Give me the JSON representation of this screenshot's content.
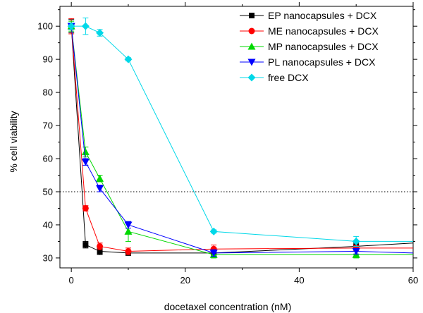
{
  "chart_data": {
    "type": "line",
    "xlabel": "docetaxel concentration (nM)",
    "ylabel": "% cell viability",
    "xlim": [
      -2,
      60
    ],
    "ylim": [
      27,
      106
    ],
    "xticks": [
      0,
      20,
      40,
      60
    ],
    "xtick_labels": [
      "0",
      "20",
      "40",
      "60"
    ],
    "yticks": [
      30,
      40,
      50,
      60,
      70,
      80,
      90,
      100
    ],
    "ytick_labels": [
      "30",
      "40",
      "50",
      "60",
      "70",
      "80",
      "90",
      "100"
    ],
    "x_minor_step": 10,
    "y_minor_step": 5,
    "grid": false,
    "legend_position": "top-right",
    "reference_line": {
      "y": 50,
      "style": "dotted",
      "color": "#000000"
    },
    "series": [
      {
        "name": "EP nanocapsules + DCX",
        "color": "#000000",
        "marker": "square",
        "x": [
          0,
          2.5,
          5,
          10,
          25,
          50,
          60
        ],
        "y": [
          100,
          34,
          32,
          31.5,
          31.5,
          33.5,
          34.5
        ],
        "err": [
          2,
          1,
          1,
          0.5,
          0.5,
          1,
          null
        ]
      },
      {
        "name": "ME nanocapsules + DCX",
        "color": "#ff0000",
        "marker": "circle",
        "x": [
          0,
          2.5,
          5,
          10,
          25,
          50,
          60
        ],
        "y": [
          100,
          45,
          33.5,
          32,
          32.7,
          33,
          33
        ],
        "err": [
          2.3,
          0.8,
          1,
          1,
          1.2,
          0.8,
          null
        ]
      },
      {
        "name": "MP nanocapsules + DCX",
        "color": "#00d800",
        "marker": "triangle-up",
        "x": [
          0,
          2.5,
          5,
          10,
          25,
          50,
          60
        ],
        "y": [
          100,
          62,
          54,
          38,
          31,
          31,
          31
        ],
        "err": [
          1.5,
          1.5,
          1,
          3,
          1,
          1,
          null
        ]
      },
      {
        "name": "PL nanocapsules + DCX",
        "color": "#0000ff",
        "marker": "triangle-down",
        "x": [
          0,
          2.5,
          5,
          10,
          25,
          50,
          60
        ],
        "y": [
          100,
          59,
          51,
          40,
          31.5,
          32,
          31.5
        ],
        "err": [
          1,
          1,
          1,
          1,
          1,
          0.8,
          null
        ]
      },
      {
        "name": "free DCX",
        "color": "#00d8e8",
        "marker": "diamond",
        "x": [
          0,
          2.5,
          5,
          10,
          25,
          50,
          60
        ],
        "y": [
          100,
          100,
          98,
          90,
          38,
          35,
          35
        ],
        "err": [
          1,
          2.5,
          1,
          0.5,
          0.5,
          1.5,
          null
        ]
      }
    ]
  }
}
